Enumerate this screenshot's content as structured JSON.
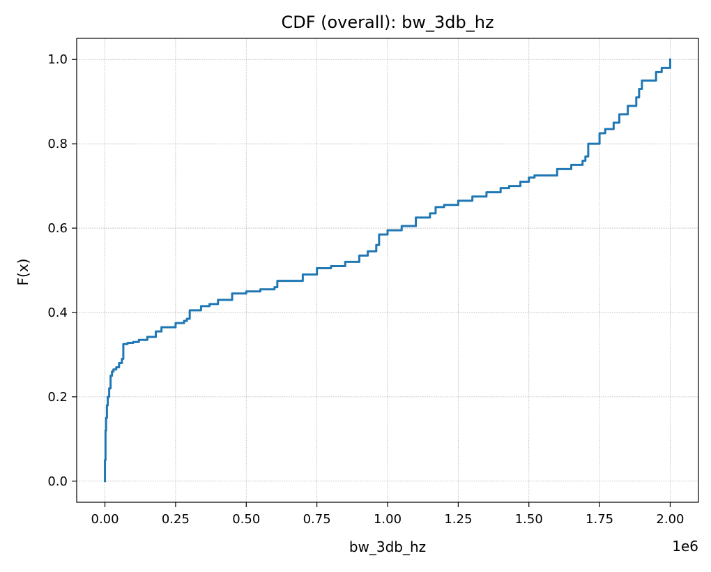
{
  "chart_data": {
    "type": "line",
    "title": "CDF (overall): bw_3db_hz",
    "xlabel": "bw_3db_hz",
    "ylabel": "F(x)",
    "x_scale_label": "1e6",
    "xlim": [
      -0.1,
      2.1
    ],
    "ylim": [
      -0.05,
      1.05
    ],
    "x_ticks": [
      0.0,
      0.25,
      0.5,
      0.75,
      1.0,
      1.25,
      1.5,
      1.75,
      2.0
    ],
    "x_tick_labels": [
      "0.00",
      "0.25",
      "0.50",
      "0.75",
      "1.00",
      "1.25",
      "1.50",
      "1.75",
      "2.00"
    ],
    "y_ticks": [
      0.0,
      0.2,
      0.4,
      0.6,
      0.8,
      1.0
    ],
    "y_tick_labels": [
      "0.0",
      "0.2",
      "0.4",
      "0.6",
      "0.8",
      "1.0"
    ],
    "grid": true,
    "line_color": "#1f77b4",
    "series": [
      {
        "x": [
          0.0,
          0.0,
          0.002,
          0.004,
          0.007,
          0.01,
          0.015,
          0.02,
          0.025,
          0.03,
          0.04,
          0.05,
          0.06,
          0.065,
          0.08,
          0.1,
          0.12,
          0.15,
          0.18,
          0.2,
          0.25,
          0.28,
          0.29,
          0.3,
          0.34,
          0.37,
          0.4,
          0.45,
          0.5,
          0.55,
          0.6,
          0.61,
          0.7,
          0.75,
          0.8,
          0.85,
          0.9,
          0.93,
          0.96,
          0.97,
          1.0,
          1.05,
          1.1,
          1.15,
          1.17,
          1.2,
          1.25,
          1.3,
          1.35,
          1.4,
          1.43,
          1.47,
          1.5,
          1.52,
          1.6,
          1.65,
          1.69,
          1.7,
          1.71,
          1.75,
          1.77,
          1.8,
          1.82,
          1.85,
          1.88,
          1.89,
          1.9,
          1.95,
          1.97,
          2.0
        ],
        "y": [
          0.0,
          0.05,
          0.12,
          0.15,
          0.18,
          0.2,
          0.22,
          0.25,
          0.26,
          0.265,
          0.27,
          0.28,
          0.29,
          0.325,
          0.328,
          0.33,
          0.335,
          0.342,
          0.355,
          0.365,
          0.375,
          0.38,
          0.385,
          0.405,
          0.415,
          0.42,
          0.43,
          0.445,
          0.45,
          0.455,
          0.46,
          0.475,
          0.49,
          0.505,
          0.51,
          0.52,
          0.535,
          0.545,
          0.56,
          0.585,
          0.595,
          0.605,
          0.625,
          0.635,
          0.65,
          0.655,
          0.665,
          0.675,
          0.685,
          0.695,
          0.7,
          0.71,
          0.72,
          0.725,
          0.74,
          0.75,
          0.76,
          0.77,
          0.8,
          0.825,
          0.835,
          0.85,
          0.87,
          0.89,
          0.91,
          0.93,
          0.95,
          0.97,
          0.98,
          1.0
        ]
      }
    ]
  }
}
